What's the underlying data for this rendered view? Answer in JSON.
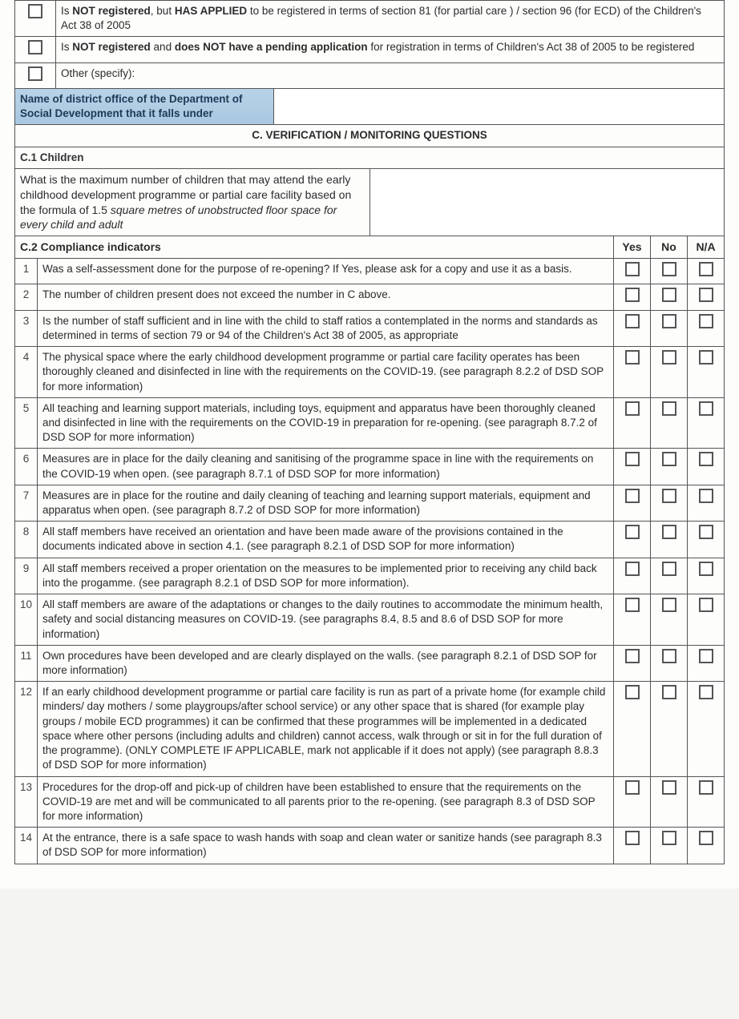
{
  "registration_options": [
    {
      "html": "Is <b>NOT registered</b>, but <b>HAS APPLIED</b> to be registered in terms of section 81 (for partial care ) / section 96 (for ECD) of the Children's Act 38 of 2005"
    },
    {
      "html": "Is <b>NOT registered</b> and <b>does NOT have a pending application</b> for registration in terms of Children's Act 38 of 2005 to be registered"
    },
    {
      "html": "Other (specify):"
    }
  ],
  "district_label": "Name of district office of the Department of Social Development that it falls under",
  "section_c_title": "C. VERIFICATION / MONITORING QUESTIONS",
  "c1_title": "C.1 Children",
  "c1_question_plain": "What is the maximum number of children that may attend the early childhood development programme or partial care facility  based on the formula of 1.5 ",
  "c1_question_italic": "square metres of unobstructed floor space for every child and adult",
  "c2_title": "C.2 Compliance indicators",
  "col_yes": "Yes",
  "col_no": "No",
  "col_na": "N/A",
  "indicators": [
    {
      "n": "1",
      "text": "Was a self-assessment done for the purpose of re-opening? If Yes, please ask for a copy and use it as a basis."
    },
    {
      "n": "2",
      "text": "The number of children present does not exceed the number in C above."
    },
    {
      "n": "3",
      "text": "Is the number of staff sufficient and in line with the child to staff ratios a contemplated in the norms and standards as determined in terms of section 79 or 94 of the Children's Act 38 of 2005, as appropriate"
    },
    {
      "n": "4",
      "text": "The physical space where the early childhood development programme or partial care facility operates has been thoroughly cleaned and disinfected in line with the requirements on the COVID-19. (see paragraph 8.2.2 of DSD SOP for more information)"
    },
    {
      "n": "5",
      "text": "All teaching and learning support materials, including toys, equipment and apparatus have been thoroughly cleaned and disinfected in line with the requirements on the COVID-19 in preparation for re-opening. (see paragraph 8.7.2 of DSD SOP for more information)"
    },
    {
      "n": "6",
      "text": "Measures are in place for the daily cleaning and sanitising of the programme space in line with the requirements on the COVID-19 when open. (see paragraph 8.7.1 of DSD SOP for more information)"
    },
    {
      "n": "7",
      "text": "Measures are in place for the routine and daily cleaning of teaching and learning support materials, equipment and apparatus when open. (see paragraph 8.7.2 of DSD SOP for more information)"
    },
    {
      "n": "8",
      "text": "All staff members have received an orientation and have been made aware of the provisions contained in the documents indicated above in section 4.1. (see paragraph 8.2.1 of DSD SOP for more information)"
    },
    {
      "n": "9",
      "text": "All staff members received a proper orientation on the measures to be implemented prior to receiving any child back into the progamme.  (see paragraph 8.2.1 of DSD SOP for more information)."
    },
    {
      "n": "10",
      "text": "All staff members are aware of the adaptations or changes to the daily routines to accommodate the minimum health, safety and social distancing measures on COVID-19. (see paragraphs 8.4, 8.5 and 8.6 of DSD SOP for more information)"
    },
    {
      "n": "11",
      "text": "Own procedures have been developed and are clearly displayed on the walls. (see paragraph 8.2.1 of DSD SOP for more information)"
    },
    {
      "n": "12",
      "text": "If an early childhood development programme or partial care facility is run as part of a private home (for example child minders/ day mothers / some playgroups/after school service) or any other space that is shared (for example play groups / mobile ECD programmes) it can be confirmed that these programmes will be implemented in a dedicated space where other persons (including adults and children) cannot access, walk through or sit in for the full duration of the programme). (ONLY COMPLETE IF APPLICABLE, mark not applicable if it does not apply) (see paragraph 8.8.3 of DSD SOP for more information)"
    },
    {
      "n": "13",
      "text": "Procedures for the drop-off and pick-up of children have been established to ensure that the requirements on the COVID-19 are met and will be communicated to all parents prior to the re-opening. (see paragraph 8.3 of DSD SOP for more information)"
    },
    {
      "n": "14",
      "text": "At the entrance, there is a safe space to wash hands with soap and clean water or sanitize hands (see paragraph 8.3 of DSD SOP for more information)"
    }
  ]
}
